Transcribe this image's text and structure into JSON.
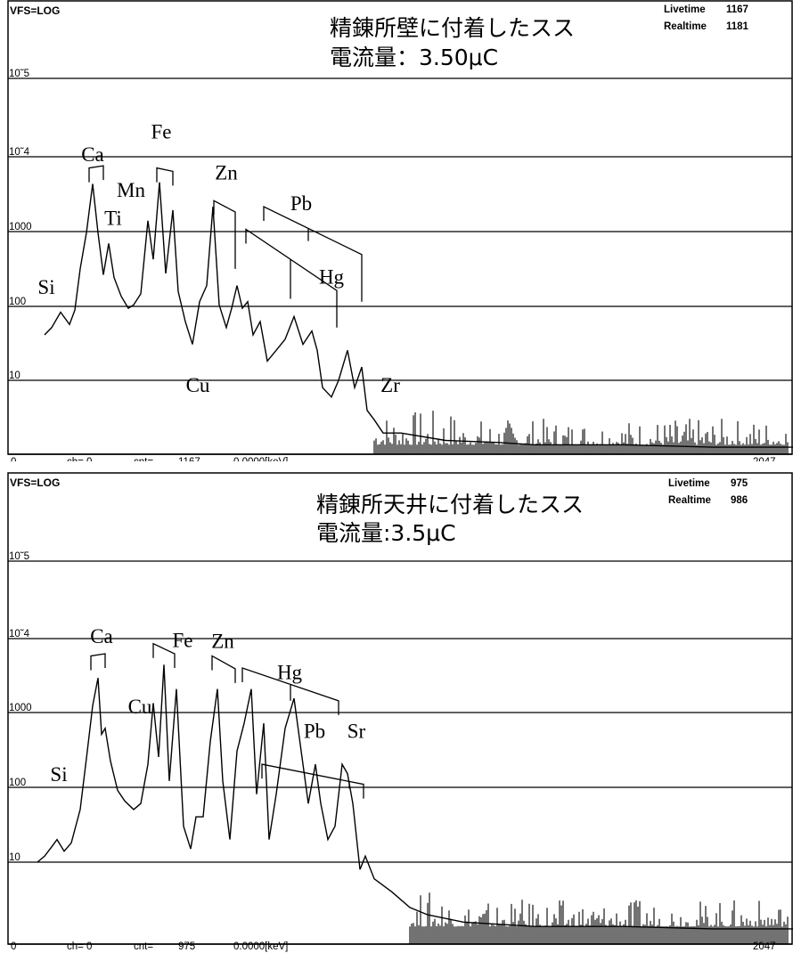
{
  "chart_data": [
    {
      "type": "line",
      "title": "精錬所壁に付着したスス",
      "subtitle": "電流量：3.50μC",
      "scale_label": "VFS=LOG",
      "y_scale": "log",
      "ylim": [
        1,
        100000
      ],
      "xlim": [
        0,
        2047
      ],
      "yticks": [
        "10^5",
        "10^4",
        "1000",
        "100",
        "10"
      ],
      "livetime_label": "Livetime",
      "livetime": "1167",
      "realtime_label": "Realtime",
      "realtime": "1181",
      "status": {
        "x0": "0",
        "ch": "ch=  0",
        "cnt": "cnt=",
        "cnt_val": "1167",
        "kev": "0.0000[keV]",
        "x1": "2047"
      },
      "series": [
        {
          "points": [
            [
              50,
              40
            ],
            [
              58,
              50
            ],
            [
              68,
              80
            ],
            [
              78,
              55
            ],
            [
              84,
              85
            ],
            [
              90,
              300
            ],
            [
              97,
              900
            ],
            [
              104,
              4000
            ],
            [
              110,
              900
            ],
            [
              116,
              250
            ],
            [
              122,
              650
            ],
            [
              128,
              230
            ],
            [
              136,
              130
            ],
            [
              144,
              90
            ],
            [
              150,
              100
            ],
            [
              158,
              140
            ],
            [
              166,
              1300
            ],
            [
              172,
              400
            ],
            [
              179,
              4200
            ],
            [
              186,
              260
            ],
            [
              194,
              1800
            ],
            [
              200,
              150
            ],
            [
              208,
              60
            ],
            [
              216,
              30
            ],
            [
              224,
              110
            ],
            [
              232,
              180
            ],
            [
              239,
              2000
            ],
            [
              246,
              100
            ],
            [
              254,
              50
            ],
            [
              260,
              90
            ],
            [
              266,
              180
            ],
            [
              272,
              90
            ],
            [
              278,
              110
            ],
            [
              284,
              40
            ],
            [
              292,
              60
            ],
            [
              300,
              18
            ],
            [
              310,
              25
            ],
            [
              320,
              35
            ],
            [
              330,
              70
            ],
            [
              340,
              30
            ],
            [
              350,
              45
            ],
            [
              356,
              25
            ],
            [
              362,
              8
            ],
            [
              372,
              6
            ],
            [
              380,
              10
            ],
            [
              390,
              25
            ],
            [
              398,
              8
            ],
            [
              406,
              15
            ],
            [
              412,
              4
            ],
            [
              420,
              3
            ],
            [
              430,
              2
            ],
            [
              450,
              2
            ],
            [
              500,
              1.6
            ],
            [
              560,
              1.5
            ],
            [
              600,
              1.4
            ],
            [
              700,
              1.4
            ],
            [
              800,
              1.3
            ],
            [
              890,
              1.3
            ]
          ]
        }
      ],
      "annotations": [
        {
          "label": "Ca",
          "x": 104,
          "level": 8000
        },
        {
          "label": "Fe",
          "x": 181,
          "level": 16000
        },
        {
          "label": "Mn",
          "x": 147,
          "level": 2700
        },
        {
          "label": "Ti",
          "x": 127,
          "level": 1150
        },
        {
          "label": "Zn",
          "x": 254,
          "level": 4600
        },
        {
          "label": "Pb",
          "x": 338,
          "level": 1800
        },
        {
          "label": "Hg",
          "x": 372,
          "level": 190
        },
        {
          "label": "Cu",
          "x": 222,
          "level": 7
        },
        {
          "label": "Si",
          "x": 52,
          "level": 140
        },
        {
          "label": "Zr",
          "x": 438,
          "level": 7
        }
      ],
      "marker_groups": [
        {
          "start": 100,
          "start_level": 6500,
          "end": 116,
          "end_level": 4500
        },
        {
          "start": 176,
          "start_level": 6500,
          "end": 194,
          "end_level": 3800
        },
        {
          "start": 240,
          "start_level": 2400,
          "end": 264,
          "end_level": 1100,
          "tick": 264,
          "tick_level": 300
        },
        {
          "start": 296,
          "start_level": 2000,
          "end": 406,
          "end_level": 300,
          "ticks": [
            [
              346,
              700
            ],
            [
              406,
              110
            ]
          ]
        },
        {
          "start": 276,
          "start_level": 1000,
          "end": 378,
          "end_level": 100,
          "ticks": [
            [
              326,
              120
            ],
            [
              378,
              50
            ]
          ]
        }
      ]
    },
    {
      "type": "line",
      "title": "精錬所天井に付着したスス",
      "subtitle": "電流量:3.5μC",
      "scale_label": "VFS=LOG",
      "y_scale": "log",
      "ylim": [
        1,
        100000
      ],
      "xlim": [
        0,
        2047
      ],
      "yticks": [
        "10^5",
        "10^4",
        "1000",
        "100",
        "10"
      ],
      "livetime_label": "Livetime",
      "livetime": "975",
      "realtime_label": "Realtime",
      "realtime": "986",
      "status": {
        "x0": "0",
        "ch": "ch=  0",
        "cnt": "cnt=",
        "cnt_val": "975",
        "kev": "0.0000[keV]",
        "x1": "2047"
      },
      "series": [
        {
          "points": [
            [
              42,
              10
            ],
            [
              50,
              12
            ],
            [
              58,
              16
            ],
            [
              64,
              20
            ],
            [
              72,
              14
            ],
            [
              80,
              18
            ],
            [
              90,
              50
            ],
            [
              98,
              300
            ],
            [
              104,
              1200
            ],
            [
              110,
              2800
            ],
            [
              114,
              500
            ],
            [
              118,
              600
            ],
            [
              124,
              220
            ],
            [
              132,
              90
            ],
            [
              140,
              65
            ],
            [
              150,
              50
            ],
            [
              158,
              60
            ],
            [
              166,
              200
            ],
            [
              172,
              1300
            ],
            [
              178,
              250
            ],
            [
              184,
              4200
            ],
            [
              190,
              120
            ],
            [
              198,
              2000
            ],
            [
              206,
              30
            ],
            [
              214,
              15
            ],
            [
              220,
              40
            ],
            [
              228,
              40
            ],
            [
              236,
              400
            ],
            [
              244,
              2000
            ],
            [
              250,
              120
            ],
            [
              258,
              20
            ],
            [
              266,
              300
            ],
            [
              274,
              700
            ],
            [
              282,
              2000
            ],
            [
              288,
              80
            ],
            [
              296,
              700
            ],
            [
              302,
              20
            ],
            [
              310,
              80
            ],
            [
              320,
              600
            ],
            [
              330,
              1500
            ],
            [
              338,
              300
            ],
            [
              346,
              60
            ],
            [
              354,
              200
            ],
            [
              360,
              60
            ],
            [
              368,
              20
            ],
            [
              376,
              30
            ],
            [
              384,
              200
            ],
            [
              390,
              150
            ],
            [
              396,
              60
            ],
            [
              404,
              8
            ],
            [
              410,
              12
            ],
            [
              420,
              6
            ],
            [
              440,
              4
            ],
            [
              460,
              2.5
            ],
            [
              480,
              2
            ],
            [
              520,
              1.6
            ],
            [
              600,
              1.4
            ],
            [
              700,
              1.4
            ],
            [
              800,
              1.3
            ],
            [
              890,
              1.3
            ]
          ]
        }
      ],
      "annotations": [
        {
          "label": "Ca",
          "x": 114,
          "level": 8200
        },
        {
          "label": "Fe",
          "x": 205,
          "level": 7200
        },
        {
          "label": "Zn",
          "x": 250,
          "level": 7000
        },
        {
          "label": "Cu",
          "x": 157,
          "level": 950
        },
        {
          "label": "Hg",
          "x": 325,
          "level": 2700
        },
        {
          "label": "Pb",
          "x": 353,
          "level": 450
        },
        {
          "label": "Sr",
          "x": 400,
          "level": 450
        },
        {
          "label": "Si",
          "x": 66,
          "level": 120
        }
      ],
      "marker_groups": [
        {
          "start": 102,
          "start_level": 5500,
          "end": 118,
          "end_level": 3800
        },
        {
          "start": 172,
          "start_level": 8000,
          "end": 196,
          "end_level": 3800
        },
        {
          "start": 238,
          "start_level": 5500,
          "end": 264,
          "end_level": 2400
        },
        {
          "start": 272,
          "start_level": 3800,
          "end": 380,
          "end_level": 900,
          "ticks": [
            [
              326,
              1400
            ]
          ]
        },
        {
          "start": 294,
          "start_level": 200,
          "end": 408,
          "end_level": 70,
          "ticks": [
            [
              346,
              150
            ],
            [
              392,
              95
            ]
          ]
        }
      ]
    }
  ]
}
